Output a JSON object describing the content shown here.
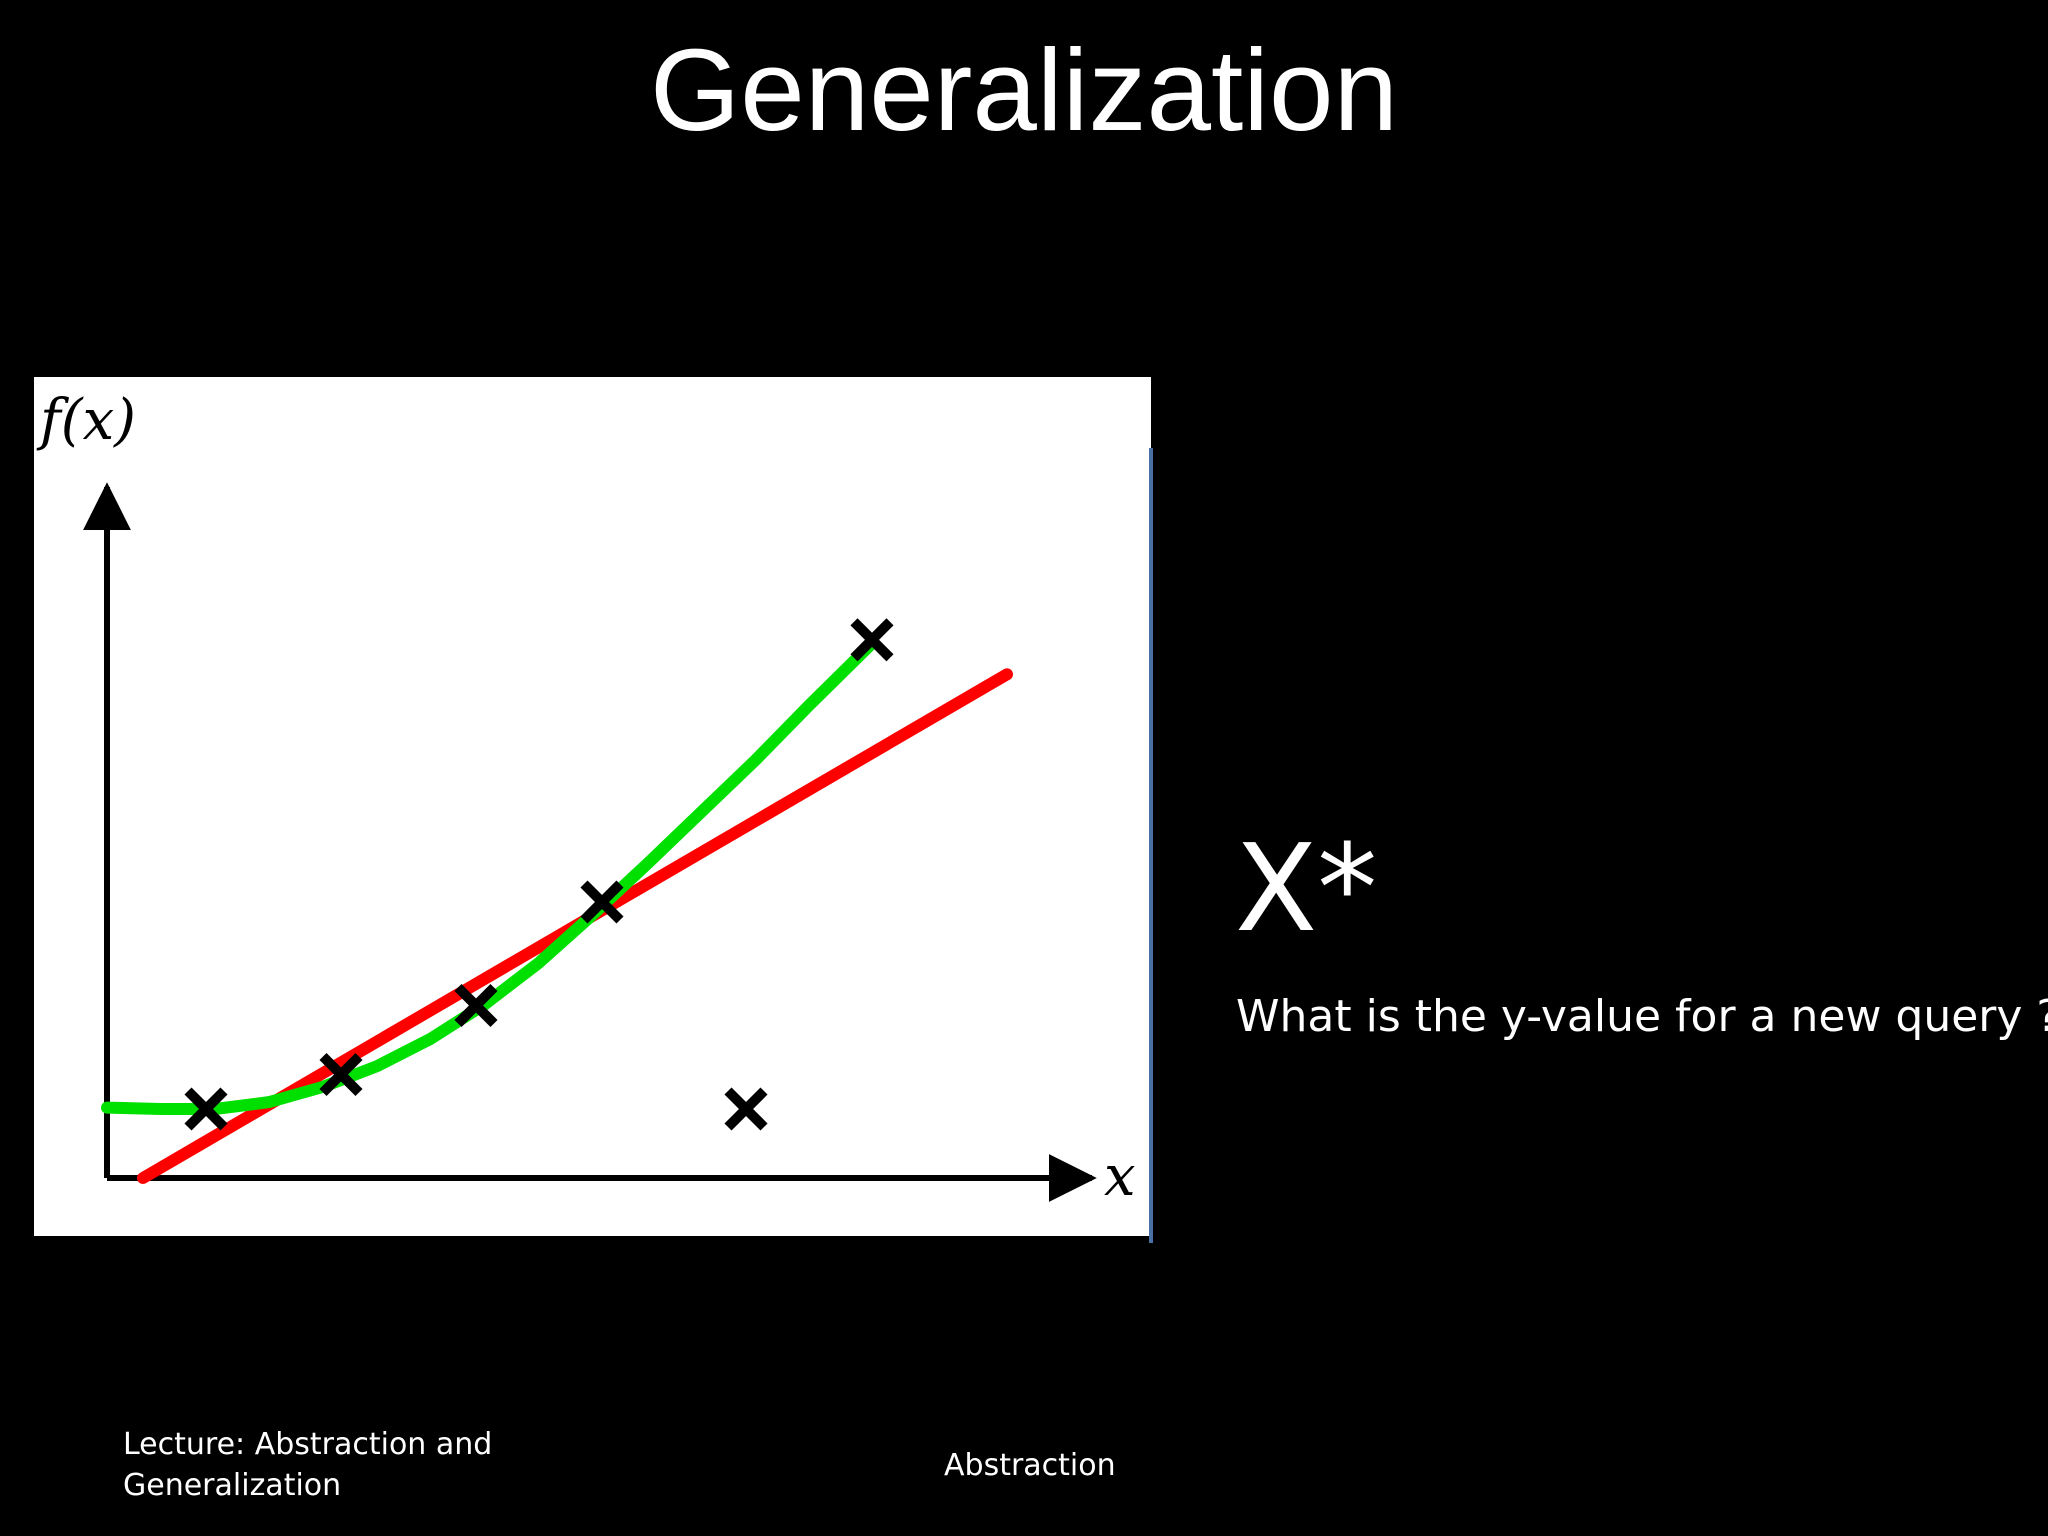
{
  "slide": {
    "title": "Generalization",
    "query_symbol": "X*",
    "query_question": "What is the y-value for a new query ?"
  },
  "footer": {
    "left": "Lecture: Abstraction and Generalization",
    "center": "Abstraction"
  },
  "colors": {
    "linear_fit": "#ff0000",
    "curve_fit": "#00e000",
    "points": "#000000",
    "axes": "#000000"
  },
  "chart_data": {
    "type": "scatter",
    "xlabel": "x",
    "ylabel": "f(x)",
    "grid": false,
    "xlim": [
      0,
      10
    ],
    "ylim": [
      0,
      10
    ],
    "points": [
      {
        "x": 1.1,
        "y": 1.0
      },
      {
        "x": 2.6,
        "y": 1.5
      },
      {
        "x": 4.1,
        "y": 2.5
      },
      {
        "x": 5.5,
        "y": 4.0
      },
      {
        "x": 7.1,
        "y": 1.0
      },
      {
        "x": 8.5,
        "y": 7.8
      }
    ],
    "series": [
      {
        "type": "line",
        "x": [
          0.4,
          10.0
        ],
        "y": [
          0.0,
          7.3
        ]
      },
      {
        "type": "curve",
        "x": [
          0.0,
          0.6,
          1.2,
          1.8,
          2.4,
          3.0,
          3.6,
          4.2,
          4.8,
          5.4,
          6.0,
          6.6,
          7.2,
          7.8,
          8.5
        ],
        "y": [
          1.02,
          1.0,
          1.0,
          1.1,
          1.32,
          1.62,
          2.02,
          2.52,
          3.12,
          3.82,
          4.55,
          5.3,
          6.05,
          6.85,
          7.75
        ]
      }
    ]
  }
}
